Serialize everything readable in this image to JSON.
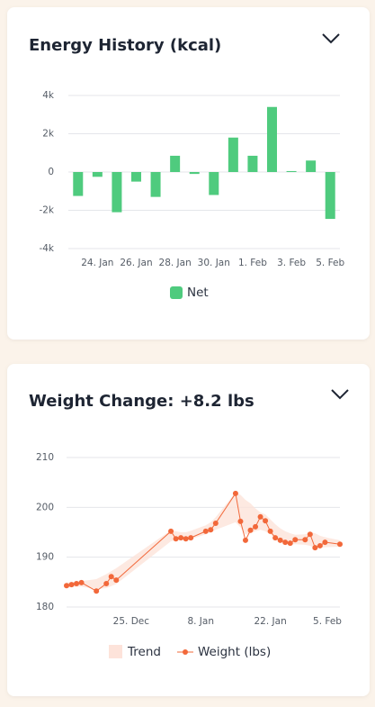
{
  "chart_data": [
    {
      "type": "bar",
      "title": "Energy History (kcal)",
      "categories": [
        null,
        "24. Jan",
        null,
        "26. Jan",
        null,
        "28. Jan",
        null,
        "30. Jan",
        null,
        "1. Feb",
        null,
        "3. Feb",
        null,
        "5. Feb"
      ],
      "series": [
        {
          "name": "Net",
          "color": "#4fcb7e",
          "values": [
            -1250,
            -250,
            -2100,
            -500,
            -1300,
            850,
            -100,
            -1200,
            1800,
            850,
            3400,
            50,
            600,
            -2450
          ]
        }
      ],
      "ylim": [
        -4000,
        4000
      ],
      "yticks": [
        {
          "value": -4000,
          "label": "-4k"
        },
        {
          "value": -2000,
          "label": "-2k"
        },
        0,
        {
          "value": 2000,
          "label": "2k"
        },
        {
          "value": 4000,
          "label": "4k"
        }
      ],
      "grid": true
    },
    {
      "type": "line",
      "title": "Weight Change: +8.2 lbs",
      "x": [
        "12. Dec",
        "13. Dec",
        "14. Dec",
        "15. Dec",
        "18. Dec",
        "20. Dec",
        "21. Dec",
        "22. Dec",
        "2. Jan",
        "3. Jan",
        "4. Jan",
        "5. Jan",
        "6. Jan",
        "9. Jan",
        "10. Jan",
        "11. Jan",
        "15. Jan",
        "16. Jan",
        "17. Jan",
        "18. Jan",
        "19. Jan",
        "20. Jan",
        "21. Jan",
        "22. Jan",
        "23. Jan",
        "24. Jan",
        "25. Jan",
        "26. Jan",
        "27. Jan",
        "29. Jan",
        "30. Jan",
        "31. Jan",
        "1. Feb",
        "2. Feb",
        "5. Feb"
      ],
      "series": [
        {
          "name": "Trend",
          "color": "#fde3da",
          "low": [
            183.9,
            184.0,
            184.1,
            184.1,
            183.6,
            183.8,
            184.2,
            184.6,
            193.2,
            193.4,
            193.5,
            193.4,
            193.6,
            194.6,
            195.0,
            195.5,
            197.0,
            196.0,
            194.5,
            194.8,
            195.2,
            195.5,
            195.2,
            194.6,
            193.8,
            193.2,
            192.8,
            192.6,
            192.6,
            192.5,
            192.3,
            191.8,
            191.9,
            192.0,
            192.1
          ],
          "high": [
            184.9,
            185.0,
            185.1,
            185.2,
            185.6,
            186.6,
            187.2,
            187.8,
            195.4,
            195.2,
            195.0,
            195.0,
            195.3,
            196.4,
            197.0,
            198.0,
            203.0,
            202.5,
            201.5,
            200.8,
            199.8,
            199.0,
            198.6,
            197.6,
            196.6,
            195.8,
            195.2,
            194.8,
            194.5,
            194.6,
            195.0,
            194.8,
            194.3,
            194.0,
            193.4
          ]
        },
        {
          "name": "Weight (lbs)",
          "color": "#f2683a",
          "values": [
            184.3,
            184.5,
            184.7,
            184.9,
            183.2,
            184.7,
            186.1,
            185.4,
            195.2,
            193.7,
            193.9,
            193.7,
            193.9,
            195.2,
            195.5,
            196.8,
            202.8,
            197.2,
            193.4,
            195.4,
            196.1,
            198.1,
            197.3,
            195.2,
            193.9,
            193.4,
            193.0,
            192.8,
            193.5,
            193.5,
            194.6,
            191.9,
            192.3,
            193.0,
            192.6
          ]
        }
      ],
      "xlim": [
        "12. Dec",
        "5. Feb"
      ],
      "xticks": [
        "25. Dec",
        "8. Jan",
        "22. Jan",
        "5. Feb"
      ],
      "ylim": [
        180,
        210
      ],
      "yticks": [
        180,
        190,
        200,
        210
      ],
      "grid": true
    }
  ]
}
